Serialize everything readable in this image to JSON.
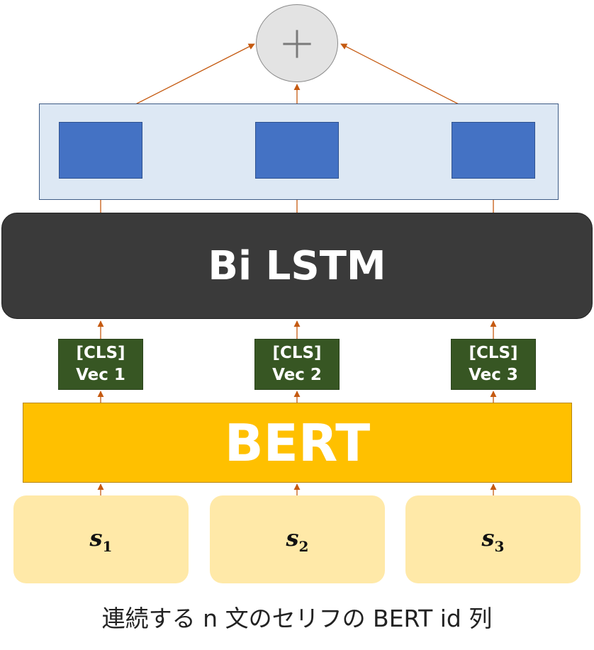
{
  "combiner": {
    "symbol": "+"
  },
  "bilstm": {
    "label": "Bi LSTM"
  },
  "cls_vectors": [
    {
      "line1": "[CLS]",
      "line2": "Vec 1"
    },
    {
      "line1": "[CLS]",
      "line2": "Vec 2"
    },
    {
      "line1": "[CLS]",
      "line2": "Vec 3"
    }
  ],
  "bert": {
    "label": "BERT"
  },
  "sentences": [
    {
      "symbol": "s",
      "subscript": "1"
    },
    {
      "symbol": "s",
      "subscript": "2"
    },
    {
      "symbol": "s",
      "subscript": "3"
    }
  ],
  "caption": "連続する n 文のセリフの BERT id 列",
  "colors": {
    "arrow": "#c55a11",
    "lstm_fill": "#3a3a3a",
    "bert_fill": "#ffc000",
    "cls_fill": "#375623",
    "output_box_fill": "#4472c4",
    "output_panel_fill": "#dde8f4",
    "sentence_fill": "#ffe9a8"
  }
}
